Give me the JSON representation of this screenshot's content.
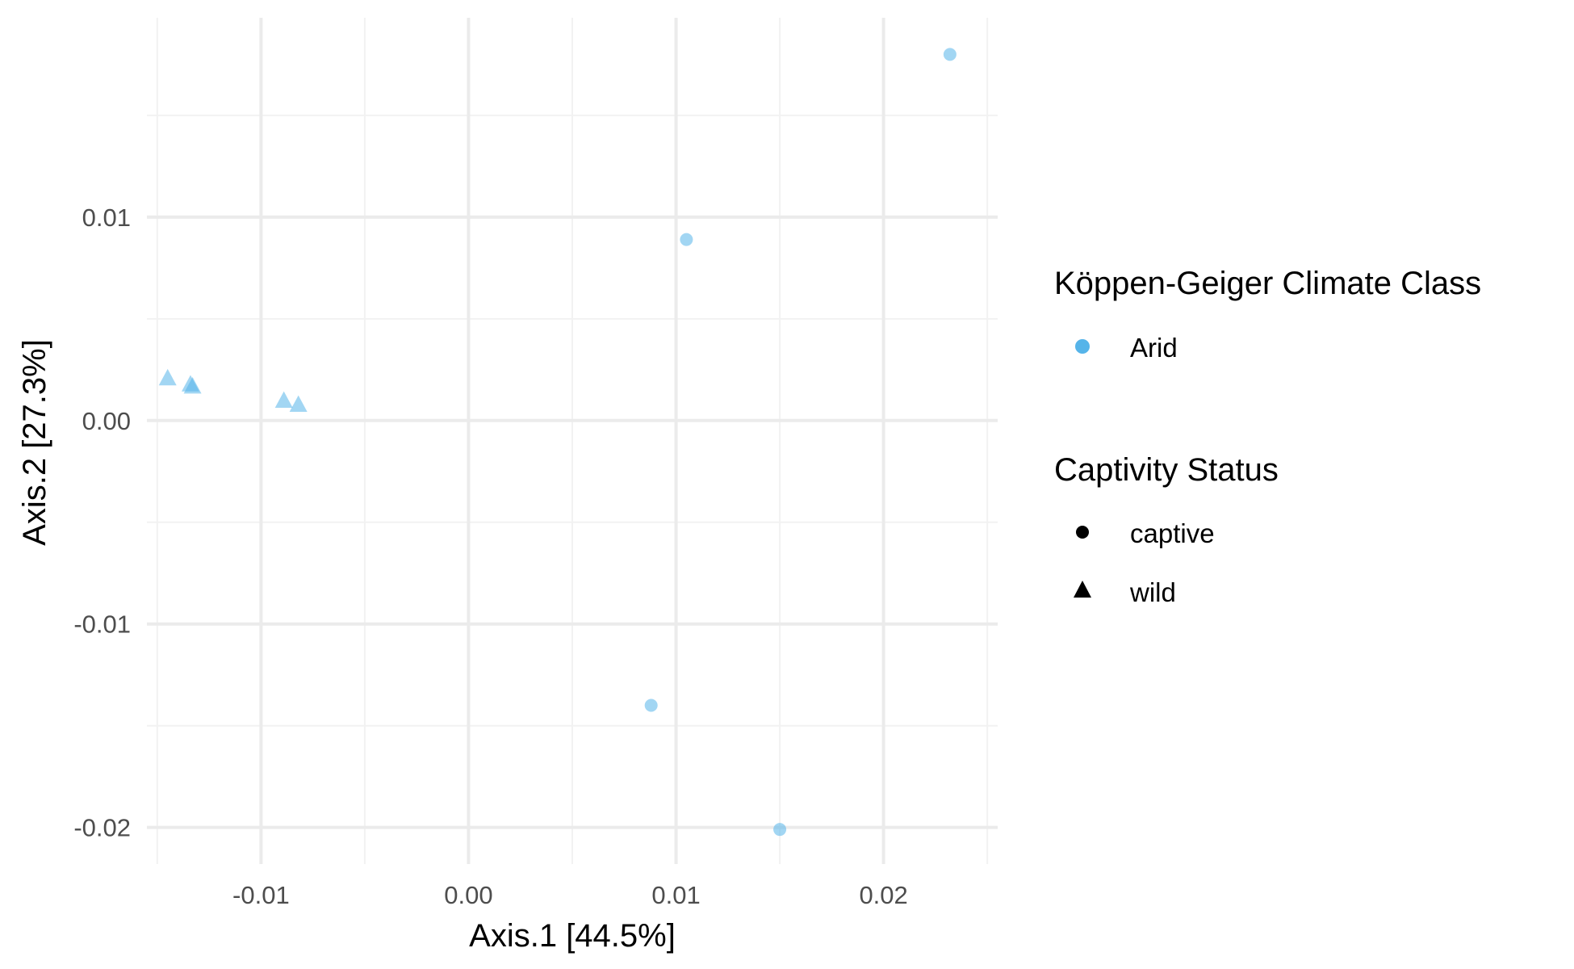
{
  "chart_data": {
    "type": "scatter",
    "title": "",
    "xlabel": "Axis.1   [44.5%]",
    "ylabel": "Axis.2   [27.3%]",
    "xlim": [
      -0.0155,
      0.0255
    ],
    "ylim": [
      -0.0218,
      0.0198
    ],
    "xticks": [
      -0.01,
      0.0,
      0.01,
      0.02
    ],
    "xtick_labels": [
      "-0.01",
      "0.00",
      "0.01",
      "0.02"
    ],
    "yticks": [
      -0.02,
      -0.01,
      0.0,
      0.01
    ],
    "ytick_labels": [
      "-0.02",
      "-0.01",
      "0.00",
      "0.01"
    ],
    "grid": true,
    "legend_position": "right",
    "color_legend": {
      "title": "Köppen-Geiger Climate Class",
      "entries": [
        {
          "label": "Arid",
          "color": "#56B4E9"
        }
      ]
    },
    "shape_legend": {
      "title": "Captivity Status",
      "entries": [
        {
          "label": "captive",
          "shape": "circle"
        },
        {
          "label": "wild",
          "shape": "triangle"
        }
      ]
    },
    "series": [
      {
        "color": "#56B4E9",
        "shape": "circle",
        "points": [
          {
            "x": 0.0232,
            "y": 0.018
          },
          {
            "x": 0.0105,
            "y": 0.0089
          },
          {
            "x": 0.0088,
            "y": -0.014
          },
          {
            "x": 0.015,
            "y": -0.0201
          }
        ]
      },
      {
        "color": "#56B4E9",
        "shape": "triangle",
        "points": [
          {
            "x": -0.0145,
            "y": 0.0021
          },
          {
            "x": -0.0134,
            "y": 0.0018
          },
          {
            "x": -0.0133,
            "y": 0.0017
          },
          {
            "x": -0.0089,
            "y": 0.001
          },
          {
            "x": -0.0082,
            "y": 0.0008
          }
        ]
      }
    ]
  },
  "colors": {
    "point": "#56B4E9",
    "grid_major": "#EBEBEB",
    "grid_minor": "#F2F2F2"
  }
}
